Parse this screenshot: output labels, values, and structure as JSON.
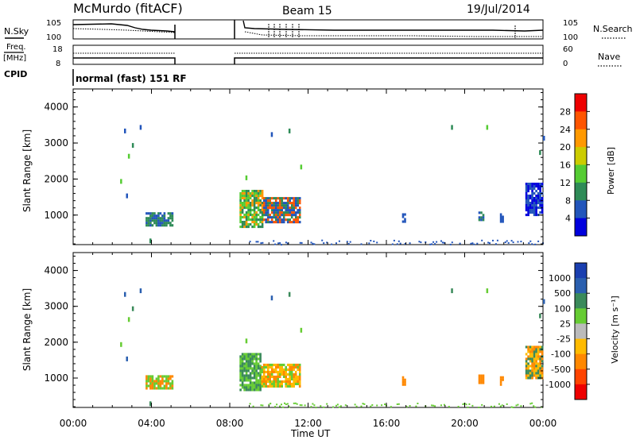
{
  "header": {
    "station": "McMurdo (fitACF)",
    "beam": "Beam 15",
    "date": "19/Jul/2014"
  },
  "top_panels": {
    "nsky_label": "N.Sky",
    "nsearch_label": "N.Search",
    "noise_ticks_left": [
      "10^5",
      "10^0"
    ],
    "noise_ticks_right": [
      "10^5",
      "10^0"
    ],
    "freq_label_1": "Freq.",
    "freq_label_2": "[MHz]",
    "freq_ticks": [
      "18",
      "8"
    ],
    "nave_label": "Nave",
    "nave_ticks": [
      "60",
      "0"
    ],
    "cpid_label": "CPID",
    "cpid_text": "normal (fast) 151 RF"
  },
  "chart_data": [
    {
      "type": "heatmap",
      "name": "power",
      "ylabel": "Slant Range [km]",
      "ylim": [
        180,
        4500
      ],
      "yticks": [
        "1000",
        "2000",
        "3000",
        "4000"
      ],
      "colorbar_label": "Power [dB]",
      "colorbar_ticks": [
        "4",
        "8",
        "12",
        "16",
        "20",
        "24",
        "28"
      ],
      "colorbar_colors": [
        "#0000dd",
        "#2255bb",
        "#2e8b57",
        "#55cc33",
        "#cccc00",
        "#ff9900",
        "#ff5500",
        "#ee0000"
      ],
      "blobs": [
        {
          "t": [
            3.7,
            5.1
          ],
          "r": [
            700,
            1080
          ],
          "c": [
            2,
            1
          ]
        },
        {
          "t": [
            8.5,
            9.7
          ],
          "r": [
            700,
            1700
          ],
          "c": [
            2,
            3,
            5
          ]
        },
        {
          "t": [
            9.7,
            11.6
          ],
          "r": [
            800,
            1500
          ],
          "c": [
            1,
            2,
            6
          ]
        },
        {
          "t": [
            16.8,
            17.0
          ],
          "r": [
            850,
            1050
          ],
          "c": [
            1
          ]
        },
        {
          "t": [
            20.7,
            21.0
          ],
          "r": [
            850,
            1100
          ],
          "c": [
            1,
            2
          ]
        },
        {
          "t": [
            21.8,
            22.0
          ],
          "r": [
            850,
            1050
          ],
          "c": [
            1
          ]
        },
        {
          "t": [
            23.1,
            24.0
          ],
          "r": [
            1000,
            1900
          ],
          "c": [
            0,
            1
          ]
        }
      ]
    },
    {
      "type": "heatmap",
      "name": "velocity",
      "ylabel": "Slant Range [km]",
      "ylim": [
        180,
        4500
      ],
      "yticks": [
        "1000",
        "2000",
        "3000",
        "4000"
      ],
      "colorbar_label": "Velocity [m s⁻¹]",
      "colorbar_ticks": [
        "1000",
        "500",
        "100",
        "25",
        "-25",
        "-100",
        "-500",
        "-1000"
      ],
      "colorbar_colors": [
        "#1a3fb0",
        "#2a5faf",
        "#3a8a5a",
        "#66cc33",
        "#bbbbbb",
        "#ffbb00",
        "#ff8800",
        "#ff4400",
        "#ee0000"
      ],
      "blobs": [
        {
          "t": [
            3.7,
            5.1
          ],
          "r": [
            700,
            1080
          ],
          "c": [
            6,
            3
          ]
        },
        {
          "t": [
            8.5,
            9.6
          ],
          "r": [
            700,
            1700
          ],
          "c": [
            2,
            3
          ]
        },
        {
          "t": [
            9.6,
            11.6
          ],
          "r": [
            800,
            1400
          ],
          "c": [
            3,
            5,
            6
          ]
        },
        {
          "t": [
            16.8,
            17.0
          ],
          "r": [
            850,
            1050
          ],
          "c": [
            6
          ]
        },
        {
          "t": [
            20.7,
            21.0
          ],
          "r": [
            850,
            1100
          ],
          "c": [
            6
          ]
        },
        {
          "t": [
            21.8,
            22.0
          ],
          "r": [
            850,
            1050
          ],
          "c": [
            6
          ]
        },
        {
          "t": [
            23.1,
            24.0
          ],
          "r": [
            1000,
            1900
          ],
          "c": [
            5,
            6,
            2
          ]
        }
      ]
    }
  ],
  "x_axis": {
    "xlabel": "Time UT",
    "xticks": [
      "00:00",
      "04:00",
      "08:00",
      "12:00",
      "16:00",
      "20:00",
      "00:00"
    ],
    "xlim_hours": [
      0,
      24
    ]
  }
}
